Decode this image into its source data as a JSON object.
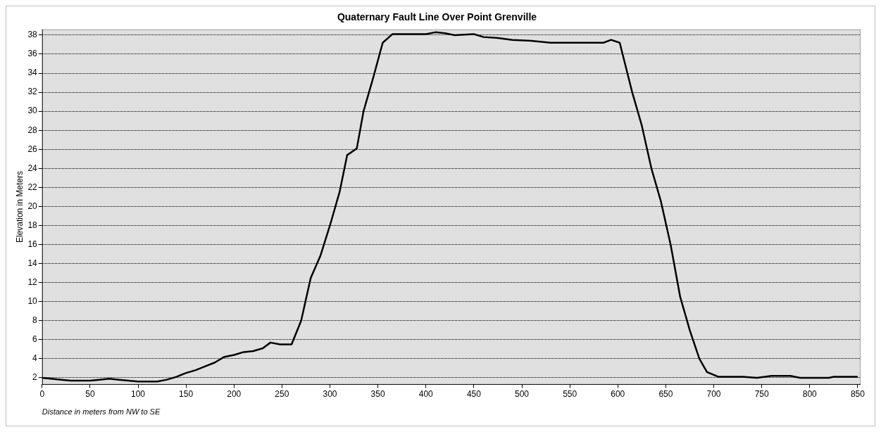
{
  "chart_data": {
    "type": "line",
    "title": "Quaternary Fault Line Over Point Grenville",
    "xlabel": "Distance in meters from NW to SE",
    "ylabel": "Elevation in Meters",
    "x": [
      0,
      20,
      30,
      50,
      60,
      70,
      80,
      100,
      120,
      130,
      140,
      150,
      160,
      170,
      180,
      190,
      200,
      210,
      220,
      230,
      238,
      248,
      260,
      270,
      280,
      290,
      300,
      310,
      318,
      328,
      335,
      345,
      355,
      365,
      380,
      400,
      410,
      420,
      430,
      450,
      460,
      475,
      490,
      510,
      530,
      560,
      585,
      593,
      602,
      615,
      625,
      635,
      645,
      655,
      665,
      675,
      685,
      693,
      705,
      730,
      745,
      760,
      780,
      790,
      820,
      825,
      850
    ],
    "series": [
      {
        "color": "#000000",
        "values": [
          2.0,
          1.8,
          1.7,
          1.7,
          1.8,
          1.9,
          1.8,
          1.6,
          1.6,
          1.8,
          2.1,
          2.5,
          2.8,
          3.2,
          3.6,
          4.2,
          4.4,
          4.7,
          4.8,
          5.1,
          5.7,
          5.5,
          5.5,
          8,
          12.5,
          14.8,
          18,
          21.5,
          25.4,
          26.1,
          30,
          33.5,
          37.2,
          38.1,
          38.1,
          38.1,
          38.3,
          38.2,
          38.0,
          38.1,
          37.8,
          37.7,
          37.5,
          37.4,
          37.2,
          37.2,
          37.2,
          37.5,
          37.2,
          32,
          28.5,
          24,
          20.5,
          16,
          10.5,
          7,
          4,
          2.6,
          2.1,
          2.1,
          2.0,
          2.2,
          2.2,
          2.0,
          2.0,
          2.1,
          2.1
        ]
      }
    ],
    "xlim": [
      0,
      853
    ],
    "xticks": [
      0,
      50,
      100,
      150,
      200,
      250,
      300,
      350,
      400,
      450,
      500,
      550,
      600,
      650,
      700,
      750,
      800,
      850
    ],
    "ylim": [
      1.3,
      38.6
    ],
    "yticks": [
      2,
      4,
      6,
      8,
      10,
      12,
      14,
      16,
      18,
      20,
      22,
      24,
      26,
      28,
      30,
      32,
      34,
      36,
      38
    ],
    "grid": "y",
    "legend": false,
    "marker": "none",
    "line_style": "solid"
  }
}
